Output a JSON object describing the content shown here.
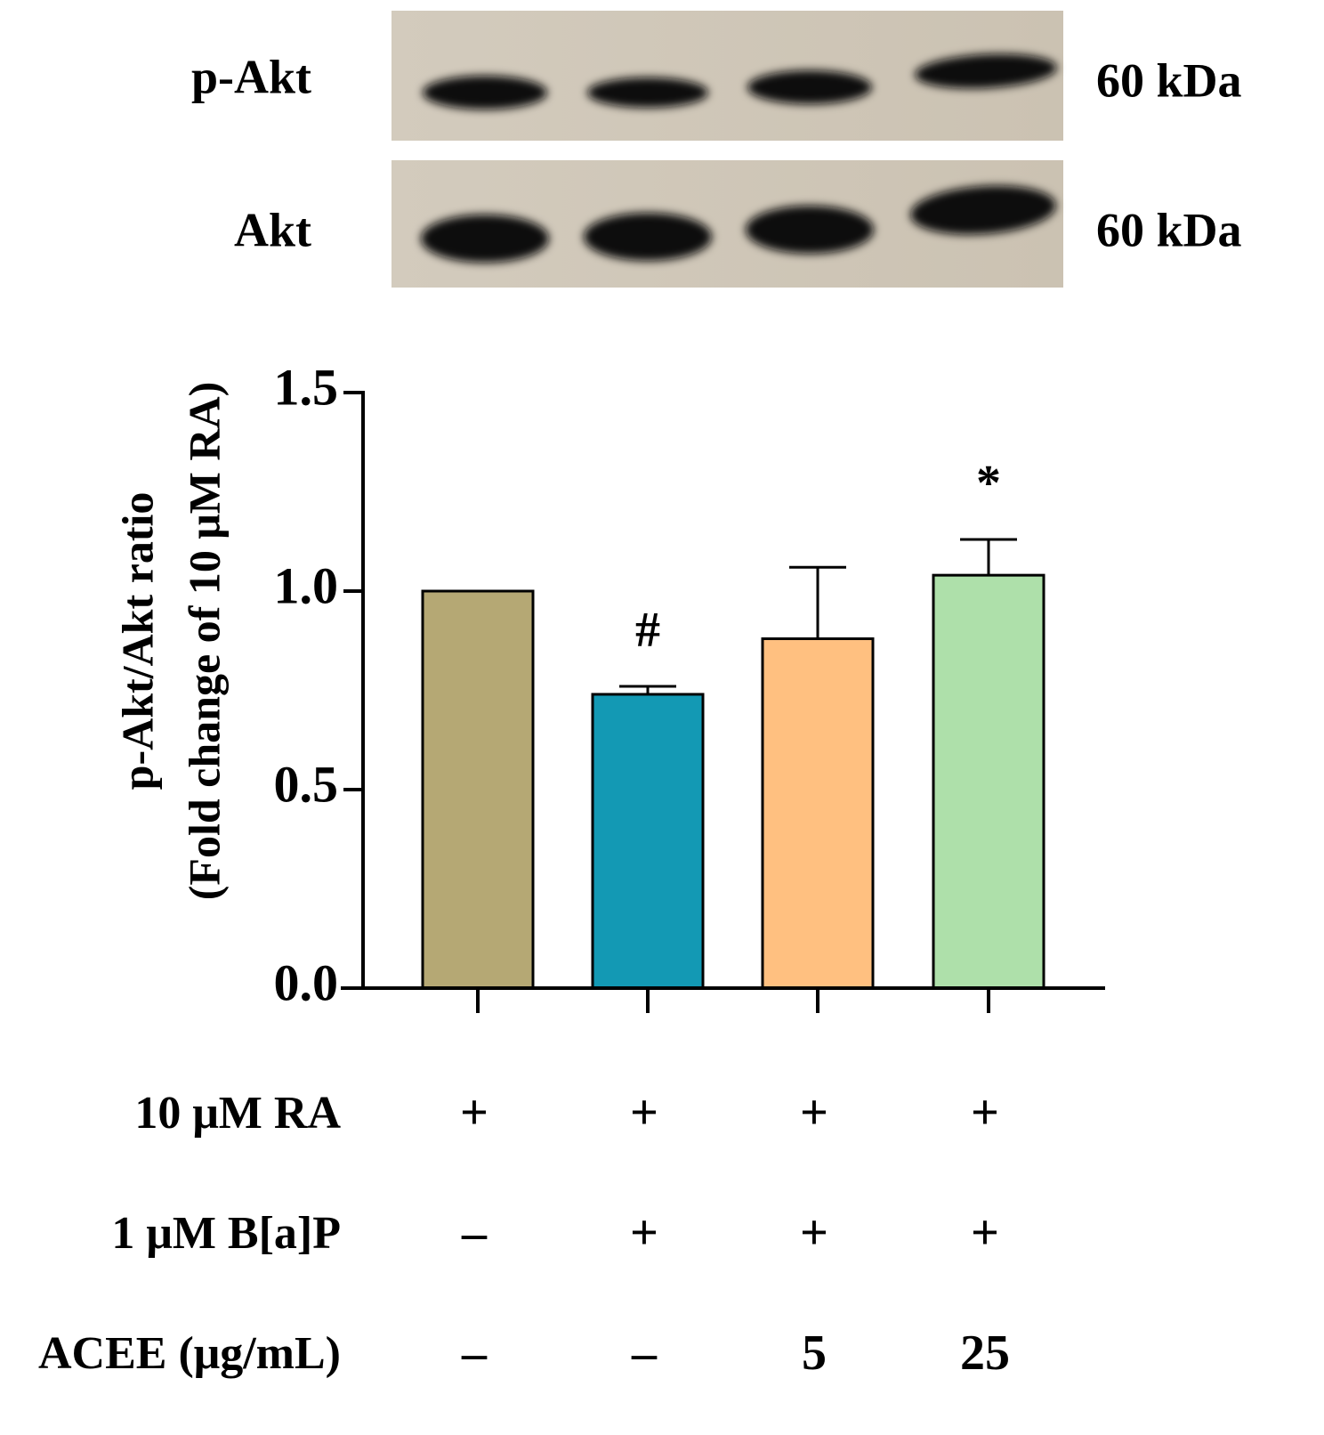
{
  "blot": {
    "rows": [
      {
        "label": "p-Akt",
        "size": "60 kDa"
      },
      {
        "label": "Akt",
        "size": "60 kDa"
      }
    ]
  },
  "chart_data": {
    "type": "bar",
    "ylabel": [
      "p-Akt/Akt ratio",
      "(Fold change of 10 μM RA)"
    ],
    "categories": [
      null,
      null,
      null,
      null
    ],
    "values": [
      1.0,
      0.74,
      0.88,
      1.04
    ],
    "errors": [
      0,
      0.02,
      0.18,
      0.09
    ],
    "value_annotations": [
      null,
      "#",
      null,
      "*"
    ],
    "colors": [
      "#b5a874",
      "#1399b4",
      "#ffc080",
      "#aee0aa"
    ],
    "ylim": [
      0,
      1.5
    ],
    "yticks": [
      {
        "value": 0,
        "label": "0.0"
      },
      0.5,
      {
        "value": 1,
        "label": "1.0"
      },
      1.5
    ]
  },
  "treatments": {
    "rows": [
      {
        "label": "10 μM RA",
        "entries": [
          "+",
          "+",
          "+",
          "+"
        ]
      },
      {
        "label": "1 μM B[a]P",
        "entries": [
          "–",
          "+",
          "+",
          "+"
        ]
      },
      {
        "label": "ACEE (μg/mL)",
        "entries": [
          "–",
          "–",
          "5",
          "25"
        ]
      }
    ]
  }
}
